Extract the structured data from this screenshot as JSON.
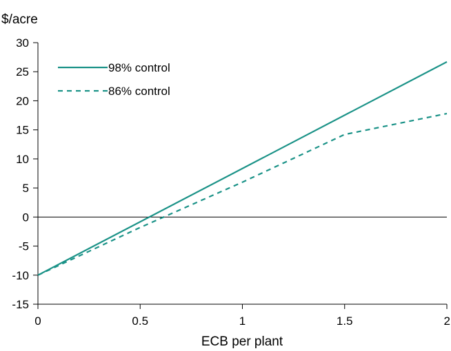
{
  "chart_data": {
    "type": "line",
    "ylabel": "$/acre",
    "xlabel": "ECB per plant",
    "xlim": [
      0,
      2
    ],
    "ylim": [
      -15,
      30
    ],
    "x_ticks": [
      "0",
      "0.5",
      "1",
      "1.5",
      "2"
    ],
    "y_ticks": [
      "30",
      "25",
      "20",
      "15",
      "10",
      "5",
      "0",
      "-5",
      "-10",
      "-15"
    ],
    "grid": false,
    "legend_position": "top-left",
    "colors": {
      "series": "#1a9287",
      "axis": "#000000",
      "zero_line": "#000000"
    },
    "series": [
      {
        "name": "98% control",
        "style": "solid",
        "points": [
          [
            0,
            -10
          ],
          [
            2,
            26.7
          ]
        ]
      },
      {
        "name": "86% control",
        "style": "dashed",
        "points": [
          [
            0,
            -10
          ],
          [
            0.5,
            -1.8
          ],
          [
            1.0,
            6.0
          ],
          [
            1.5,
            14.2
          ],
          [
            2.0,
            17.8
          ]
        ]
      }
    ]
  }
}
